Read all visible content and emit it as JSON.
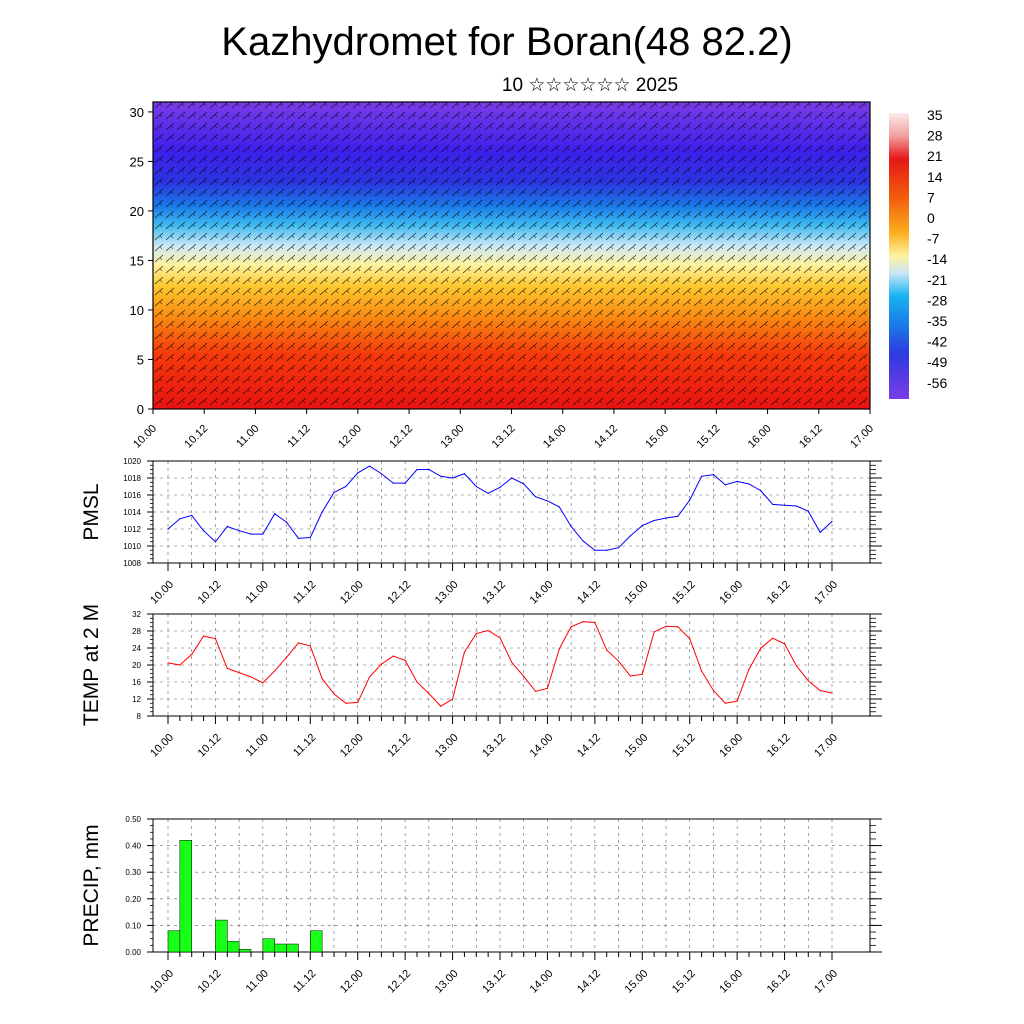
{
  "title": "Kazhydromet for Boran(48 82.2)",
  "subtitle": "10 ☆☆☆☆☆☆ 2025",
  "x_ticks": [
    "10.00",
    "10.12",
    "11.00",
    "11.12",
    "12.00",
    "12.12",
    "13.00",
    "13.12",
    "14.00",
    "14.12",
    "15.00",
    "15.12",
    "16.00",
    "16.12",
    "17.00"
  ],
  "chart_data": [
    {
      "type": "heatmap",
      "title": "",
      "xlabel": "",
      "ylabel": "",
      "x_ticks": [
        "10.00",
        "10.12",
        "11.00",
        "11.12",
        "12.00",
        "12.12",
        "13.00",
        "13.12",
        "14.00",
        "14.12",
        "15.00",
        "15.12",
        "16.00",
        "16.12",
        "17.00"
      ],
      "y_ticks": [
        0,
        5,
        10,
        15,
        20,
        25,
        30
      ],
      "ylim": [
        0,
        31
      ],
      "colorbar_labels": [
        "35",
        "28",
        "21",
        "14",
        "7",
        "0",
        "-7",
        "-14",
        "-21",
        "-28",
        "-35",
        "-42",
        "-49",
        "-56"
      ],
      "color_stops": [
        "#fbeaea",
        "#f2b5b5",
        "#e51818",
        "#f03010",
        "#f56a0a",
        "#fba51a",
        "#fde03c",
        "#fff6b0",
        "#bfe3f5",
        "#18b4f0",
        "#1a7be8",
        "#2e3ae0",
        "#3a1ee8",
        "#7a3ce8"
      ],
      "grid": false
    },
    {
      "type": "line",
      "ylabel": "PMSL",
      "ylim": [
        1008,
        1020
      ],
      "y_ticks": [
        1008,
        1010,
        1012,
        1014,
        1016,
        1018,
        1020
      ],
      "series_color": "#0000ff",
      "grid": true,
      "x": [
        0,
        1,
        2,
        3,
        4,
        5,
        6,
        7,
        8,
        9,
        10,
        11,
        12,
        13,
        14,
        15,
        16,
        17,
        18,
        19,
        20,
        21,
        22,
        23,
        24,
        25,
        26,
        27,
        28,
        29,
        30,
        31,
        32,
        33,
        34,
        35,
        36,
        37,
        38,
        39,
        40,
        41,
        42,
        43,
        44,
        45,
        46,
        47,
        48,
        49,
        50,
        51,
        52,
        53,
        54,
        55,
        56
      ],
      "values": [
        1012,
        1013.2,
        1013.6,
        1011.8,
        1010.5,
        1012.3,
        1011.8,
        1011.4,
        1011.4,
        1013.8,
        1012.8,
        1010.9,
        1011,
        1014,
        1016.3,
        1017,
        1018.6,
        1019.4,
        1018.5,
        1017.4,
        1017.4,
        1019,
        1019,
        1018.2,
        1018,
        1018.5,
        1017,
        1016.2,
        1016.9,
        1018,
        1017.3,
        1015.8,
        1015.3,
        1014.6,
        1012.3,
        1010.6,
        1009.5,
        1009.5,
        1009.8,
        1011.2,
        1012.4,
        1013,
        1013.3,
        1013.5,
        1015.4,
        1018.2,
        1018.4,
        1017.2,
        1017.6,
        1017.3,
        1016.5,
        1014.9,
        1014.8,
        1014.7,
        1014.1,
        1011.6,
        1012.9
      ]
    },
    {
      "type": "line",
      "ylabel": "TEMP at 2 M",
      "ylim": [
        8,
        32
      ],
      "y_ticks": [
        8,
        12,
        16,
        20,
        24,
        28,
        32
      ],
      "series_color": "#ff0000",
      "grid": true,
      "x": [
        0,
        1,
        2,
        3,
        4,
        5,
        6,
        7,
        8,
        9,
        10,
        11,
        12,
        13,
        14,
        15,
        16,
        17,
        18,
        19,
        20,
        21,
        22,
        23,
        24,
        25,
        26,
        27,
        28,
        29,
        30,
        31,
        32,
        33,
        34,
        35,
        36,
        37,
        38,
        39,
        40,
        41,
        42,
        43,
        44,
        45,
        46,
        47,
        48,
        49,
        50,
        51,
        52,
        53,
        54,
        55,
        56
      ],
      "values": [
        20.5,
        20,
        22.5,
        26.8,
        26.2,
        19.2,
        18.2,
        17.2,
        15.8,
        18.6,
        21.8,
        25.2,
        24.5,
        16.8,
        13.2,
        11,
        11.2,
        17.2,
        20.2,
        22.1,
        21.1,
        16,
        13.3,
        10.3,
        12,
        23,
        27.4,
        28.1,
        26.4,
        20.6,
        17.3,
        13.8,
        14.5,
        23.8,
        29,
        30.2,
        30,
        23.5,
        20.9,
        17.4,
        17.8,
        27.8,
        29.1,
        29,
        26.2,
        18.6,
        14,
        11,
        11.5,
        19,
        24,
        26.3,
        25,
        19.8,
        16.3,
        14,
        13.4
      ]
    },
    {
      "type": "bar",
      "ylabel": "PRECIP, mm",
      "ylim": [
        0,
        0.5
      ],
      "y_ticks": [
        "0.00",
        "0.10",
        "0.20",
        "0.30",
        "0.40",
        "0.50"
      ],
      "series_color": "#18ff18",
      "grid": true,
      "x": [
        0,
        1,
        2,
        3,
        4,
        5,
        6,
        7,
        8,
        9,
        10,
        11,
        12,
        13,
        14,
        15,
        16,
        17,
        18,
        19,
        20,
        21,
        22,
        23,
        24,
        25,
        26,
        27,
        28,
        29,
        30,
        31,
        32,
        33,
        34,
        35,
        36,
        37,
        38,
        39,
        40,
        41,
        42,
        43,
        44,
        45,
        46,
        47,
        48,
        49,
        50,
        51,
        52,
        53,
        54,
        55,
        56
      ],
      "values": [
        0.08,
        0.42,
        0,
        0,
        0.12,
        0.04,
        0.01,
        0,
        0.05,
        0.03,
        0.03,
        0,
        0.08,
        0,
        0,
        0,
        0,
        0,
        0,
        0,
        0,
        0,
        0,
        0,
        0,
        0,
        0,
        0,
        0,
        0,
        0,
        0,
        0,
        0,
        0,
        0,
        0,
        0,
        0,
        0,
        0,
        0,
        0,
        0,
        0,
        0,
        0,
        0,
        0,
        0,
        0,
        0,
        0,
        0,
        0,
        0,
        0
      ]
    }
  ]
}
